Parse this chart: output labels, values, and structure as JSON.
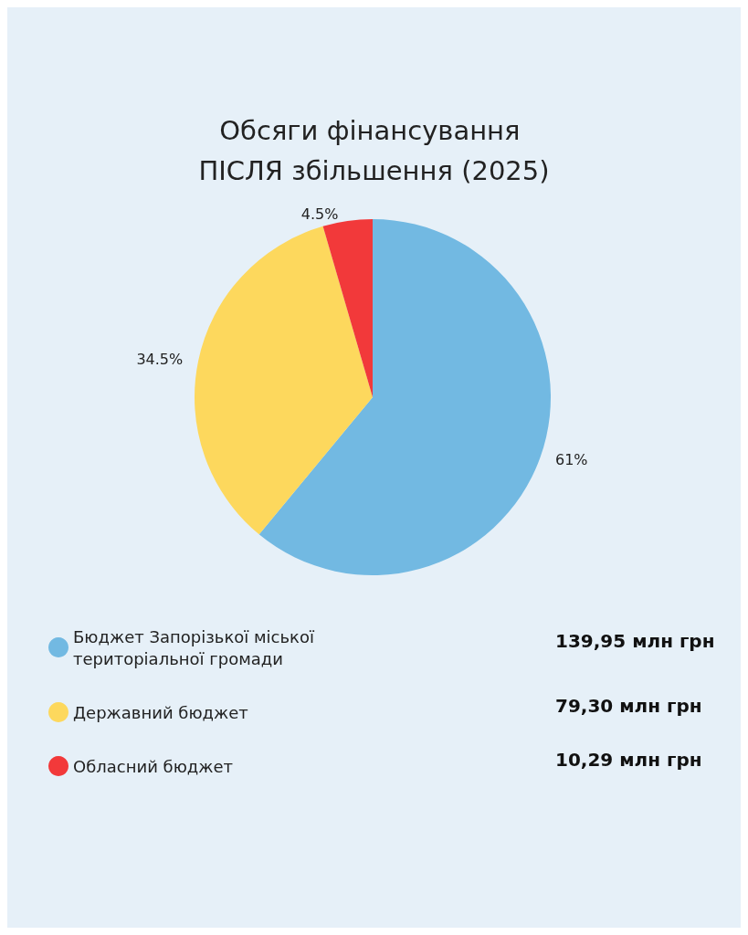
{
  "chart_data": {
    "type": "pie",
    "title": "Обсяги фінансування ПІСЛЯ збільшення (2025)",
    "categories": [
      "Бюджет Запорізької міської територіальної громади",
      "Державний бюджет",
      "Обласний бюджет"
    ],
    "values": [
      61,
      34.5,
      4.5
    ],
    "colors": [
      "#72b9e2",
      "#fdd85d",
      "#f2393a"
    ],
    "value_labels": [
      "61%",
      "34.5%",
      "4.5%"
    ],
    "annotations": [
      "139,95 млн грн",
      "79,30 млн грн",
      "10,29 млн грн"
    ],
    "legend": "bottom"
  }
}
